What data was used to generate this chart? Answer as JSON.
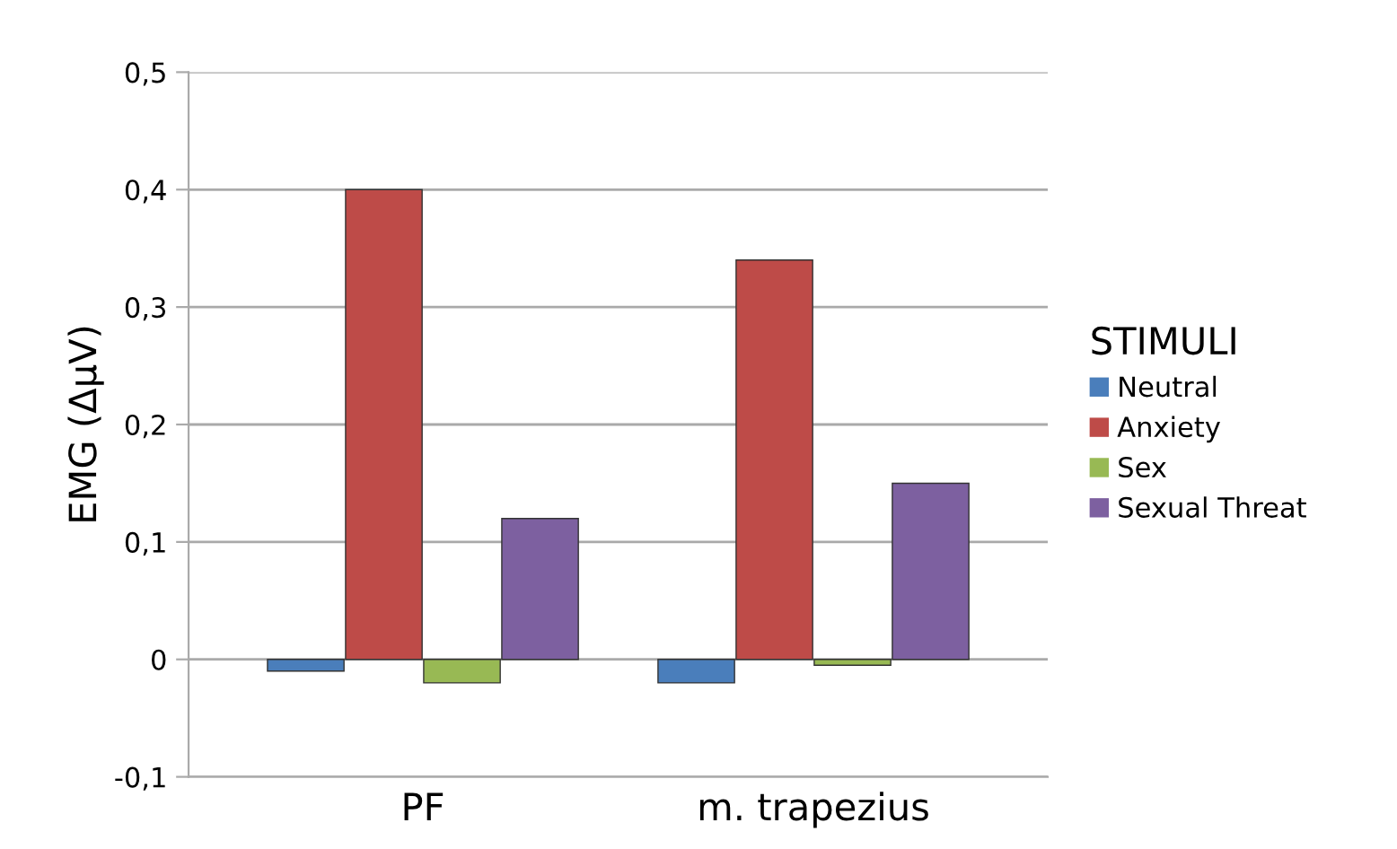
{
  "chart_data": {
    "type": "bar",
    "ylabel": "EMG (ΔµV)",
    "legend_title": "STIMULI",
    "categories": [
      "PF",
      "m. trapezius"
    ],
    "series": [
      {
        "name": "Neutral",
        "color": "#4a7ebb",
        "values": [
          -0.01,
          -0.02
        ]
      },
      {
        "name": "Anxiety",
        "color": "#be4b48",
        "values": [
          0.4,
          0.34
        ]
      },
      {
        "name": "Sex",
        "color": "#98b954",
        "values": [
          -0.02,
          -0.005
        ]
      },
      {
        "name": "Sexual Threat",
        "color": "#7d60a0",
        "values": [
          0.12,
          0.15
        ]
      }
    ],
    "ylim": [
      -0.1,
      0.5
    ],
    "yticks": [
      {
        "value": -0.1,
        "label": "-0,1"
      },
      0,
      {
        "value": 0.1,
        "label": "0,1"
      },
      {
        "value": 0.2,
        "label": "0,2"
      },
      {
        "value": 0.3,
        "label": "0,3"
      },
      {
        "value": 0.4,
        "label": "0,4"
      },
      {
        "value": 0.5,
        "label": "0,5"
      }
    ],
    "grid": "y",
    "legend": "right"
  }
}
